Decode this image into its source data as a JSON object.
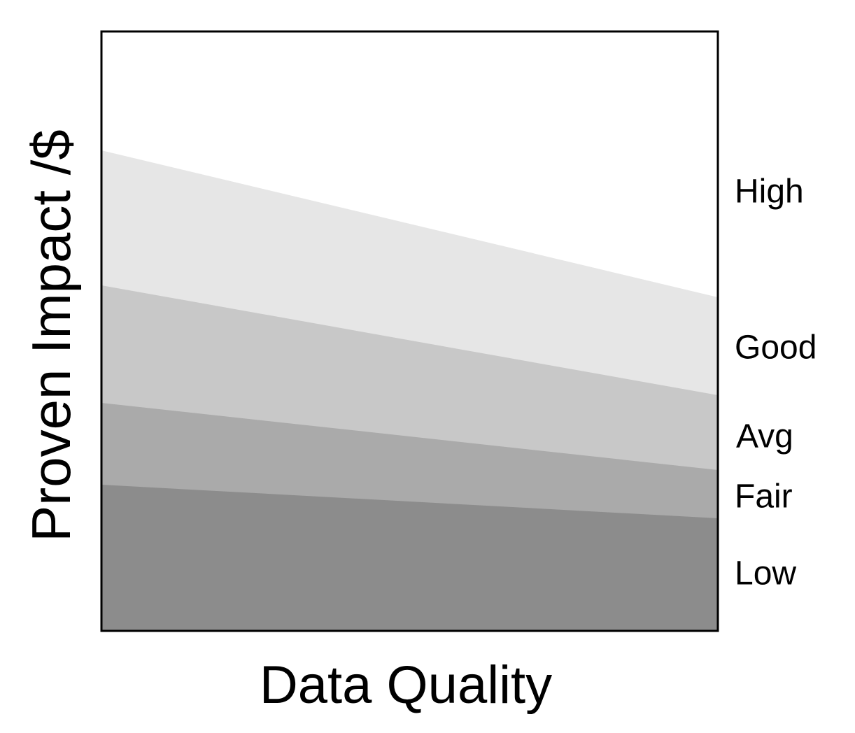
{
  "x_label": "Data Quality",
  "y_label": "Proven Impact /$",
  "bands": [
    "High",
    "Good",
    "Avg",
    "Fair",
    "Low"
  ]
}
